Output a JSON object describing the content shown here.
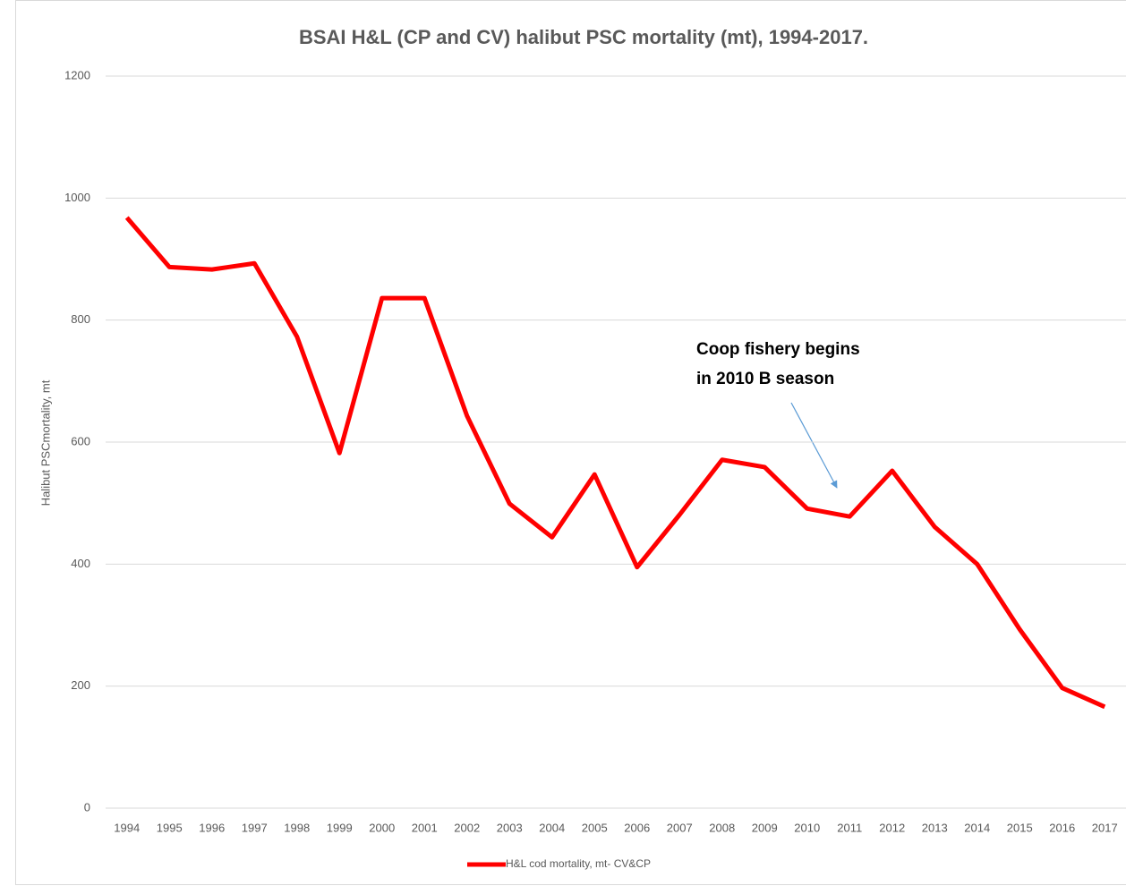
{
  "chart_data": {
    "type": "line",
    "title": "BSAI H&L (CP and CV) halibut PSC mortality (mt), 1994-2017.",
    "y_label": "Halibut PSCmortality, mt",
    "categories": [
      "1994",
      "1995",
      "1996",
      "1997",
      "1998",
      "1999",
      "2000",
      "2001",
      "2002",
      "2003",
      "2004",
      "2005",
      "2006",
      "2007",
      "2008",
      "2009",
      "2010",
      "2011",
      "2012",
      "2013",
      "2014",
      "2015",
      "2016",
      "2017"
    ],
    "series": [
      {
        "name": "H&L cod mortality, mt- CV&CP",
        "color": "#ff0000",
        "values": [
          968,
          887,
          883,
          893,
          773,
          582,
          836,
          836,
          643,
          499,
          444,
          547,
          395,
          481,
          571,
          559,
          491,
          478,
          553,
          461,
          400,
          293,
          197,
          166
        ]
      }
    ],
    "ylim": [
      0,
      1200
    ],
    "yticks": [
      0,
      200,
      400,
      600,
      800,
      1000,
      1200
    ],
    "grid": true,
    "legend": "bottom",
    "annotation": {
      "lines": [
        "Coop fishery begins",
        "in 2010 B season"
      ]
    }
  }
}
